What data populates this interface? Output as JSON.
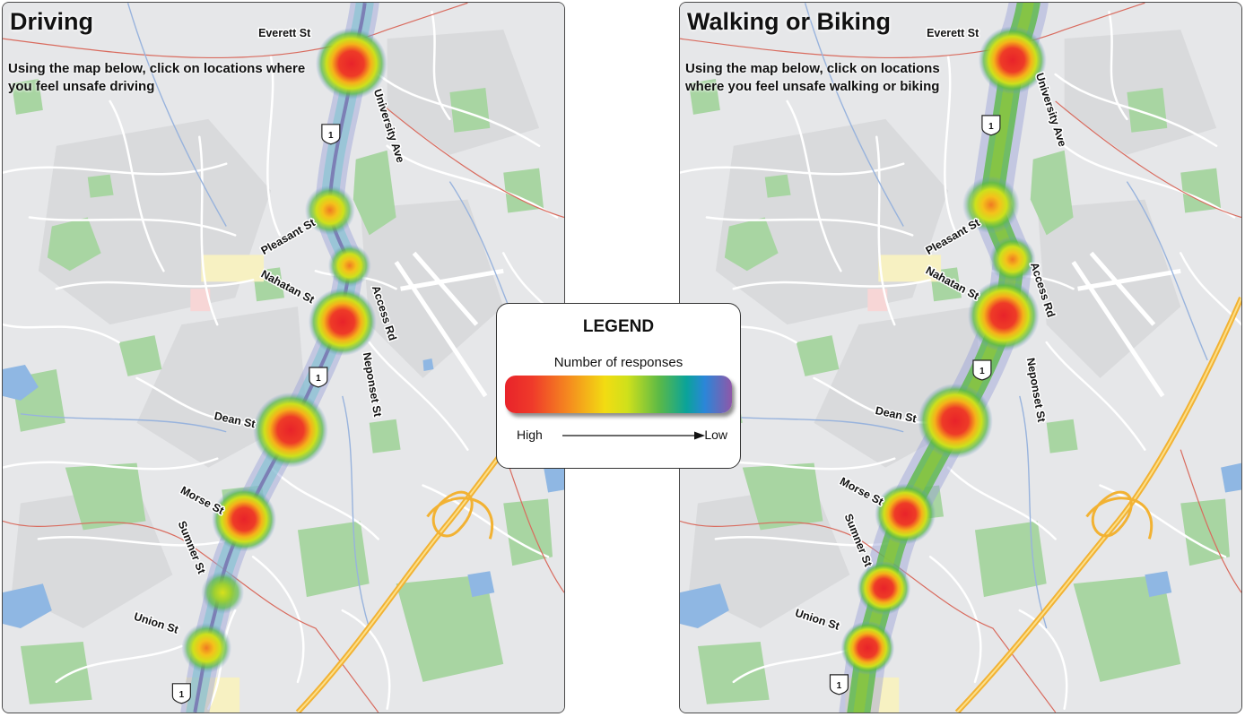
{
  "panels": [
    {
      "title": "Driving",
      "subtitle": "Using the map below, click on locations where you feel unsafe driving",
      "streets": [
        "Everett St",
        "University Ave",
        "Pleasant St",
        "Nahatan St",
        "Access Rd",
        "Neponset St",
        "Dean St",
        "Morse St",
        "Sumner St",
        "Union St"
      ],
      "route_shield": "1"
    },
    {
      "title": "Walking or Biking",
      "subtitle": "Using the map below, click on locations where you feel unsafe walking or biking",
      "streets": [
        "Everett St",
        "University Ave",
        "Pleasant St",
        "Nahatan St",
        "Access Rd",
        "Neponset St",
        "Dean St",
        "Morse St",
        "Sumner St",
        "Union St"
      ],
      "route_shield": "1"
    }
  ],
  "legend": {
    "title": "LEGEND",
    "subtitle": "Number of responses",
    "high_label": "High",
    "low_label": "Low",
    "gradient_colors": [
      "#e8232a",
      "#f58a1f",
      "#f2dc12",
      "#5bb947",
      "#0aa39a",
      "#2b86d8",
      "#8f57a8"
    ]
  },
  "colors": {
    "map_background": "#e6e7e9",
    "park_green": "#a8d5a2",
    "water_blue": "#8fb7e3",
    "highway_orange": "#f2b233",
    "boundary_red": "#d96b5e",
    "heat_high": "#e8232a",
    "heat_low": "#8f57a8"
  }
}
